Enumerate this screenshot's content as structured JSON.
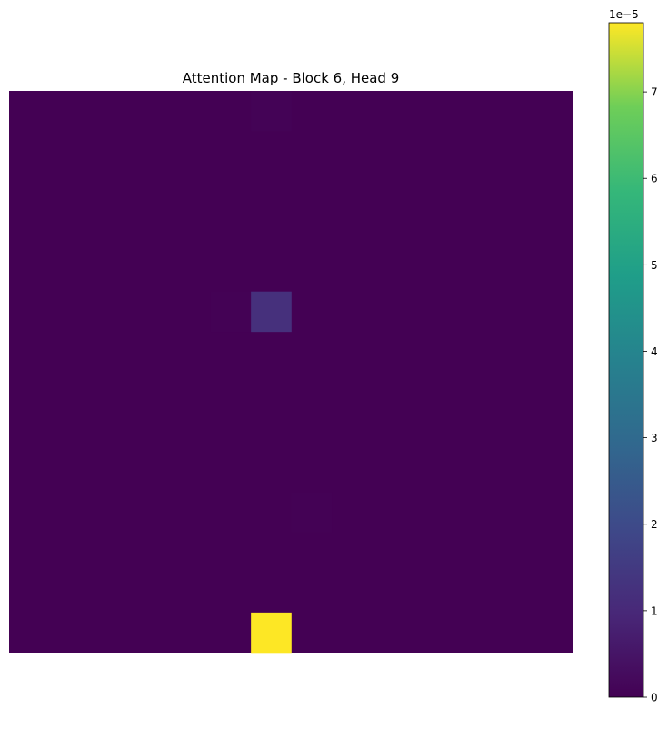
{
  "chart_data": {
    "type": "heatmap",
    "title": "Attention Map - Block 6, Head 9",
    "rows": 14,
    "cols": 14,
    "colormap": "viridis",
    "vmin": 0,
    "vmax": 7.8e-05,
    "axes_visible": false,
    "cells": [
      {
        "row": 0,
        "col": 6,
        "value": 5e-07
      },
      {
        "row": 5,
        "col": 5,
        "value": 3e-07
      },
      {
        "row": 5,
        "col": 6,
        "value": 1.2e-05
      },
      {
        "row": 10,
        "col": 7,
        "value": 2e-07
      },
      {
        "row": 13,
        "col": 6,
        "value": 7.8e-05
      }
    ],
    "default_value": 0,
    "colorbar": {
      "ticks": [
        0,
        1,
        2,
        3,
        4,
        5,
        6,
        7
      ],
      "tick_labels": [
        "0",
        "1",
        "2",
        "3",
        "4",
        "5",
        "6",
        "7"
      ],
      "multiplier_label": "1e−5",
      "placement": "right"
    }
  }
}
